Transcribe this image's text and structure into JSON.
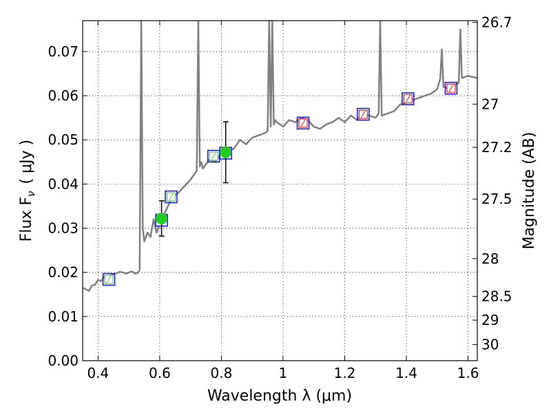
{
  "chart_data": {
    "type": "scatter",
    "xlabel": "Wavelength  λ (μm)",
    "ylabel_left": "Flux  F",
    "ylabel_left_sub": "ν",
    "ylabel_left_unit": "( μJy )",
    "ylabel_right": "Magnitude (AB)",
    "xlim": [
      0.35,
      1.63
    ],
    "ylim": [
      0.0,
      0.077
    ],
    "x_ticks": [
      0.4,
      0.6,
      0.8,
      1.0,
      1.2,
      1.4,
      1.6
    ],
    "x_tick_labels": [
      "0.4",
      "0.6",
      "0.8",
      "1",
      "1.2",
      "1.4",
      "1.6"
    ],
    "y_ticks": [
      0.0,
      0.01,
      0.02,
      0.03,
      0.04,
      0.05,
      0.06,
      0.07
    ],
    "y_tick_labels": [
      "0.00",
      "0.01",
      "0.02",
      "0.03",
      "0.04",
      "0.05",
      "0.06",
      "0.07"
    ],
    "right_ticks": [
      {
        "mag": "26.7",
        "flux": 0.0766
      },
      {
        "mag": "27",
        "flux": 0.0581
      },
      {
        "mag": "27.2",
        "flux": 0.0483
      },
      {
        "mag": "27.5",
        "flux": 0.0366
      },
      {
        "mag": "28",
        "flux": 0.0231
      },
      {
        "mag": "28.5",
        "flux": 0.01455
      },
      {
        "mag": "29",
        "flux": 0.00918
      },
      {
        "mag": "30",
        "flux": 0.00365
      }
    ],
    "grid": true,
    "colors": {
      "model_line": "#808080",
      "observed_point": "#22cc22",
      "model_box": "#1f1fcc",
      "inner_green": "#66bb66",
      "inner_red": "#dd2222",
      "error_bar": "#000000"
    },
    "series": [
      {
        "marker": "line",
        "x": [
          0.35,
          0.36,
          0.37,
          0.38,
          0.39,
          0.4,
          0.41,
          0.42,
          0.43,
          0.44,
          0.45,
          0.46,
          0.47,
          0.48,
          0.49,
          0.5,
          0.51,
          0.52,
          0.53,
          0.535,
          0.54,
          0.545,
          0.55,
          0.56,
          0.57,
          0.58,
          0.59,
          0.6,
          0.62,
          0.64,
          0.66,
          0.68,
          0.7,
          0.72,
          0.725,
          0.73,
          0.735,
          0.74,
          0.76,
          0.78,
          0.8,
          0.82,
          0.84,
          0.86,
          0.88,
          0.9,
          0.92,
          0.94,
          0.95,
          0.955,
          0.96,
          0.965,
          0.97,
          0.975,
          0.98,
          1.0,
          1.02,
          1.04,
          1.06,
          1.08,
          1.1,
          1.12,
          1.14,
          1.16,
          1.18,
          1.2,
          1.22,
          1.24,
          1.26,
          1.28,
          1.3,
          1.31,
          1.315,
          1.32,
          1.34,
          1.36,
          1.38,
          1.4,
          1.42,
          1.44,
          1.46,
          1.48,
          1.5,
          1.51,
          1.515,
          1.52,
          1.54,
          1.56,
          1.57,
          1.575,
          1.58,
          1.6,
          1.63
        ],
        "y": [
          0.0165,
          0.0162,
          0.0158,
          0.017,
          0.0172,
          0.0183,
          0.018,
          0.0191,
          0.0187,
          0.0193,
          0.0196,
          0.0198,
          0.0201,
          0.02,
          0.0197,
          0.02,
          0.0202,
          0.0197,
          0.0199,
          0.0205,
          0.077,
          0.03,
          0.027,
          0.029,
          0.028,
          0.032,
          0.029,
          0.031,
          0.034,
          0.037,
          0.038,
          0.0395,
          0.041,
          0.043,
          0.077,
          0.044,
          0.045,
          0.0435,
          0.0455,
          0.045,
          0.047,
          0.0475,
          0.048,
          0.05,
          0.049,
          0.0505,
          0.051,
          0.0515,
          0.052,
          0.077,
          0.053,
          0.077,
          0.0535,
          0.0545,
          0.054,
          0.053,
          0.0545,
          0.054,
          0.055,
          0.0545,
          0.053,
          0.0525,
          0.0535,
          0.054,
          0.055,
          0.054,
          0.0555,
          0.0545,
          0.056,
          0.0555,
          0.055,
          0.056,
          0.077,
          0.0555,
          0.056,
          0.0565,
          0.058,
          0.0585,
          0.059,
          0.0595,
          0.06,
          0.0605,
          0.0615,
          0.064,
          0.0705,
          0.062,
          0.0615,
          0.0625,
          0.063,
          0.075,
          0.064,
          0.0645,
          0.064
        ]
      },
      {
        "marker": "square",
        "x": [
          0.435,
          0.637,
          0.775,
          1.065,
          1.26,
          1.405,
          1.545
        ],
        "y": [
          0.0184,
          0.0371,
          0.0463,
          0.0538,
          0.0558,
          0.0593,
          0.0617
        ],
        "inner": [
          "green",
          "green",
          "green",
          "red",
          "red",
          "red",
          "red"
        ]
      },
      {
        "marker": "square",
        "x": [
          0.606,
          0.814
        ],
        "y": [
          0.0318,
          0.047
        ]
      },
      {
        "marker": "circle",
        "x": [
          0.606,
          0.814
        ],
        "y": [
          0.0322,
          0.0472
        ],
        "yerr_low": [
          0.0282,
          0.0403
        ],
        "yerr_high": [
          0.0362,
          0.0541
        ]
      }
    ]
  }
}
